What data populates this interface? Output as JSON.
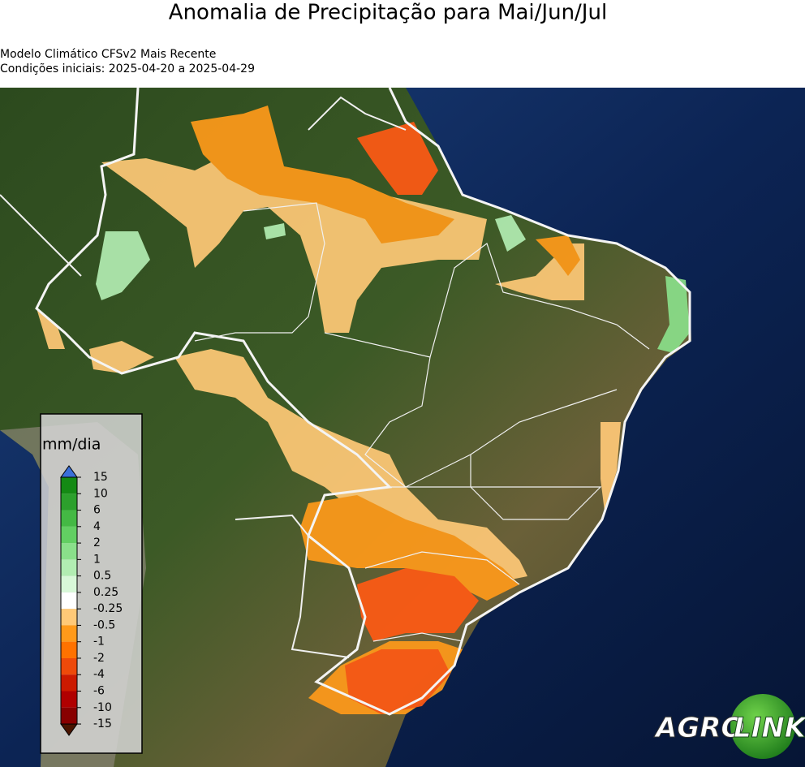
{
  "title": "Anomalia de Precipitação para Mai/Jun/Jul",
  "subtitle": [
    "Modelo Climático CFSv2 Mais Recente",
    "Condições iniciais: 2025-04-20 a 2025-04-29"
  ],
  "colorbar": {
    "label": "mm/dia",
    "ticks": [
      15,
      10,
      6,
      4,
      2,
      1,
      0.5,
      0.25,
      -0.25,
      -0.5,
      -1,
      -2,
      -4,
      -6,
      -10,
      -15
    ],
    "colors": [
      "#148a14",
      "#2ca02c",
      "#44b944",
      "#62cf62",
      "#8ae08a",
      "#b2edb2",
      "#d8f8d8",
      "#ffffff",
      "#ffc977",
      "#ff9a1a",
      "#ff7200",
      "#ee4a0a",
      "#cc1a00",
      "#b00000",
      "#880000"
    ]
  },
  "logo": [
    "AGRO",
    "LINK"
  ]
}
